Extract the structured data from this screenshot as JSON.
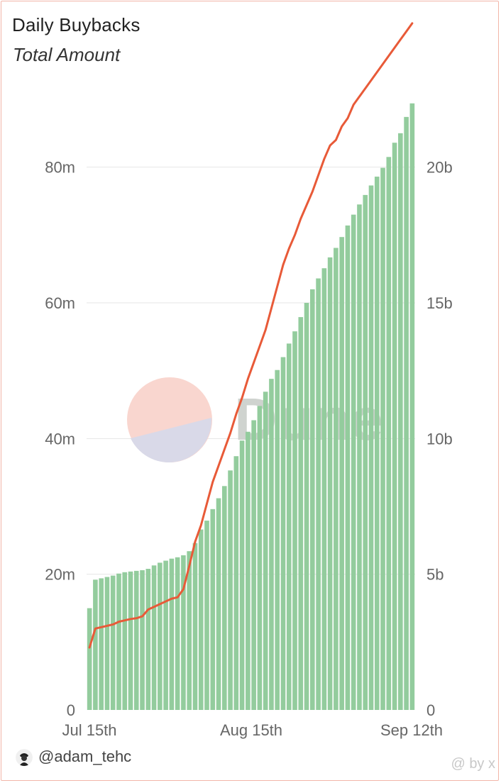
{
  "header": {
    "title": "Daily Buybacks",
    "subtitle": "Total Amount"
  },
  "watermark": {
    "text": "Dune",
    "colors": {
      "top": "#f9d6cf",
      "bottom": "#d9d9e8",
      "text": "#cfd3cf"
    }
  },
  "footer": {
    "username": "@adam_tehc",
    "tag": "@ by x"
  },
  "colors": {
    "bar": "#93cc9d",
    "line": "#e85a38",
    "grid": "#e6e6e6"
  },
  "chart_data": {
    "type": "bar",
    "x_tick_labels": [
      "Jul 15th",
      "Aug 15th",
      "Sep 12th"
    ],
    "left_axis": {
      "range": [
        0,
        90000000
      ],
      "ticks": [
        "0",
        "20m",
        "40m",
        "60m",
        "80m"
      ],
      "tick_values": [
        0,
        20000000,
        40000000,
        60000000,
        80000000
      ]
    },
    "right_axis": {
      "range": [
        0,
        22500000000
      ],
      "ticks": [
        "0",
        "5b",
        "10b",
        "15b",
        "20b"
      ],
      "tick_values": [
        0,
        5000000000,
        10000000000,
        15000000000,
        20000000000
      ]
    },
    "grid": true,
    "series": [
      {
        "type": "bar",
        "axis": "left",
        "values": [
          15000000,
          19200000,
          19400000,
          19600000,
          19800000,
          20100000,
          20300000,
          20400000,
          20500000,
          20600000,
          20800000,
          21300000,
          21700000,
          22000000,
          22300000,
          22500000,
          22800000,
          23400000,
          24600000,
          26600000,
          27900000,
          29600000,
          31200000,
          33000000,
          35300000,
          37400000,
          39700000,
          41000000,
          42700000,
          44800000,
          46900000,
          48800000,
          50100000,
          52000000,
          54000000,
          55800000,
          57900000,
          60000000,
          62000000,
          63600000,
          65100000,
          66700000,
          68100000,
          69700000,
          71400000,
          73000000,
          74500000,
          75900000,
          77300000,
          78600000,
          79900000,
          81500000,
          83600000,
          85000000,
          87400000,
          89400000
        ]
      },
      {
        "type": "line",
        "axis": "right",
        "values": [
          2300000000,
          3000000000,
          3050000000,
          3100000000,
          3150000000,
          3250000000,
          3300000000,
          3350000000,
          3380000000,
          3450000000,
          3700000000,
          3800000000,
          3900000000,
          4000000000,
          4100000000,
          4150000000,
          4450000000,
          5300000000,
          6200000000,
          6800000000,
          7600000000,
          8400000000,
          9000000000,
          9600000000,
          10200000000,
          10900000000,
          11500000000,
          12200000000,
          12800000000,
          13400000000,
          14000000000,
          14800000000,
          15600000000,
          16400000000,
          17000000000,
          17500000000,
          18100000000,
          18600000000,
          19100000000,
          19700000000,
          20300000000,
          20800000000,
          21000000000,
          21500000000,
          21800000000,
          22300000000,
          22600000000,
          22900000000,
          23200000000,
          23500000000,
          23800000000,
          24100000000,
          24400000000,
          24700000000,
          25000000000,
          25300000000
        ]
      }
    ]
  }
}
